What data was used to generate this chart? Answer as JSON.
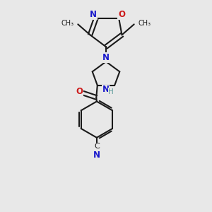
{
  "bg_color": "#e8e8e8",
  "bond_color": "#1a1a1a",
  "n_color": "#1a1acc",
  "o_color": "#cc1a1a",
  "nh_color": "#5a9a9a",
  "bond_lw": 1.5,
  "triple_lw": 1.4,
  "figsize": [
    3.0,
    3.0
  ],
  "dpi": 100,
  "xlim": [
    0.15,
    0.85
  ],
  "ylim": [
    0.02,
    0.98
  ]
}
